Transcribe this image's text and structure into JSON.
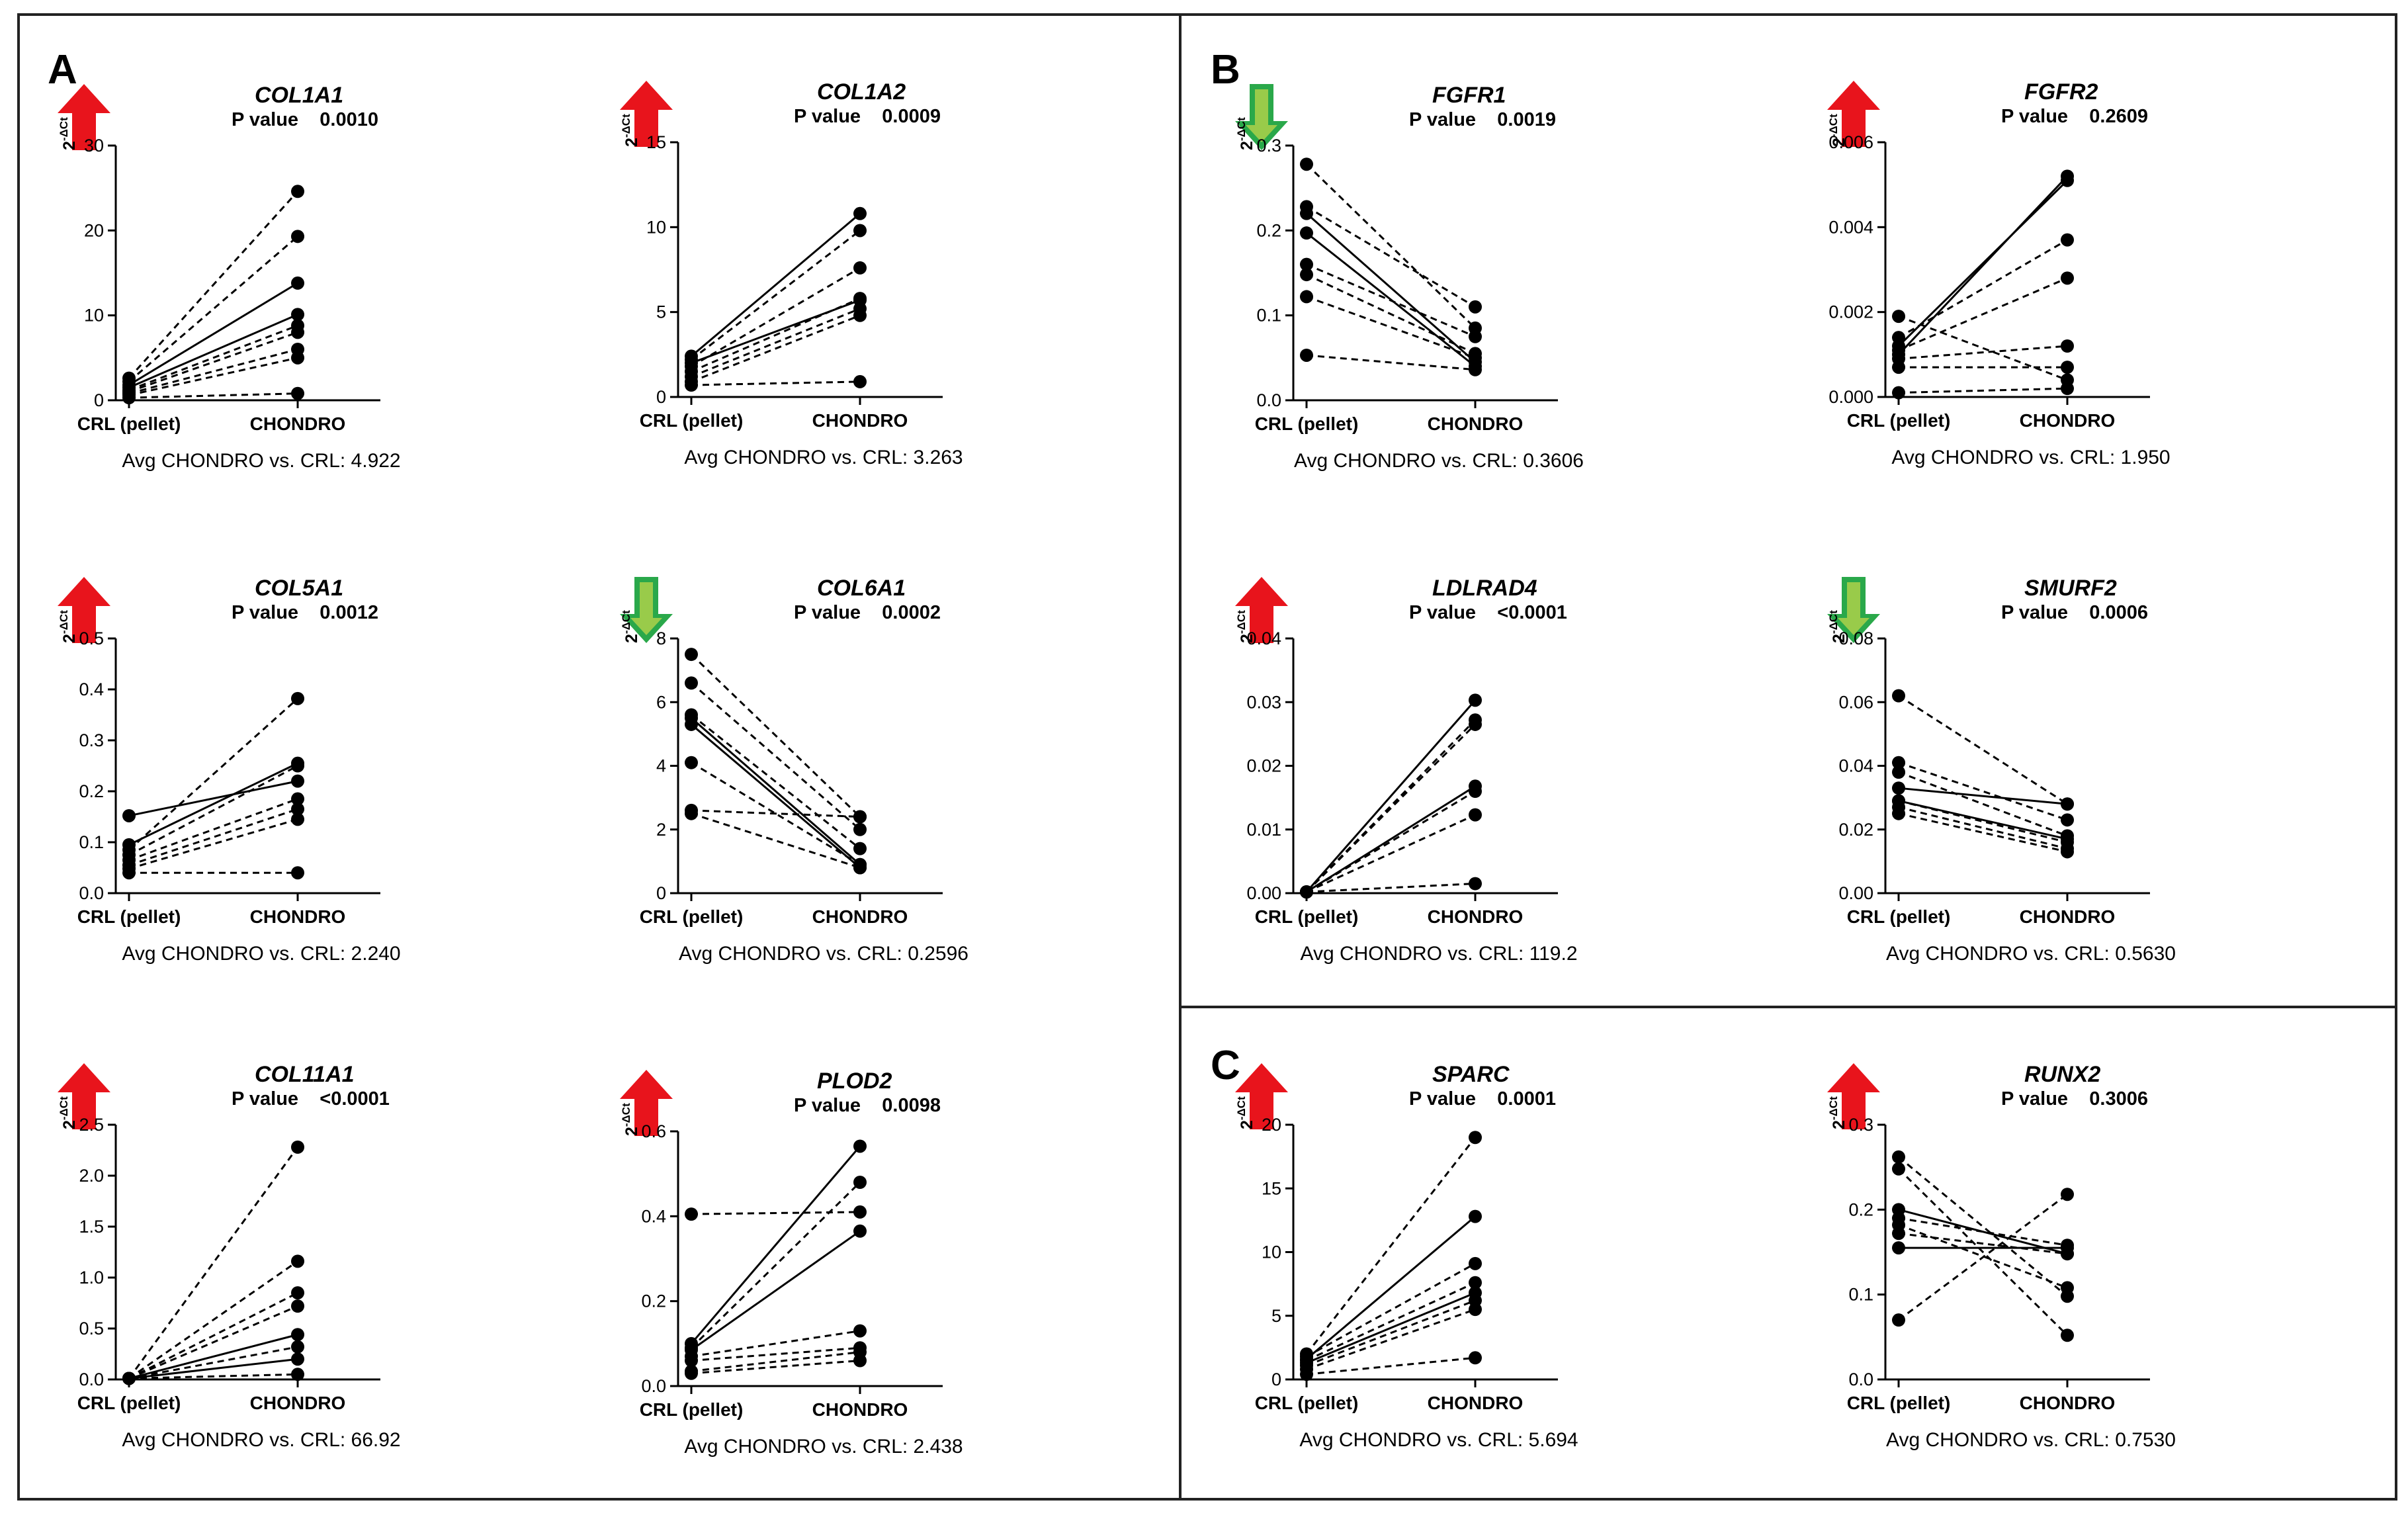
{
  "sections": [
    "A",
    "B",
    "C"
  ],
  "colors": {
    "up": "#e8141c",
    "down": "#2aa84a",
    "line": "#000000"
  },
  "y_label": "2-ΔCt",
  "chart_data": [
    {
      "type": "line",
      "section": "A",
      "gene": "COL1A1",
      "direction": "up",
      "p_label": "P value",
      "p_value": "0.0010",
      "avg_text": "Avg CHONDRO vs. CRL: 4.922",
      "ylabel": "2-ΔCt",
      "categories": [
        "CRL (pellet)",
        "CHONDRO"
      ],
      "ylim": [
        0,
        30
      ],
      "yticks": [
        "0",
        "10",
        "20",
        "30"
      ],
      "series": [
        {
          "name": "s1",
          "values": [
            1.8,
            13.8
          ],
          "style": "solid"
        },
        {
          "name": "s2",
          "values": [
            1.5,
            10.1
          ],
          "style": "solid"
        },
        {
          "name": "s3",
          "values": [
            2.6,
            24.6
          ],
          "style": "dashed"
        },
        {
          "name": "s4",
          "values": [
            2.2,
            19.3
          ],
          "style": "dashed"
        },
        {
          "name": "s5",
          "values": [
            1.2,
            8.8
          ],
          "style": "dashed"
        },
        {
          "name": "s6",
          "values": [
            1.0,
            8.0
          ],
          "style": "dashed"
        },
        {
          "name": "s7",
          "values": [
            0.8,
            6.0
          ],
          "style": "dashed"
        },
        {
          "name": "s8",
          "values": [
            0.6,
            5.0
          ],
          "style": "dashed"
        },
        {
          "name": "s9",
          "values": [
            0.3,
            0.8
          ],
          "style": "dashed"
        }
      ]
    },
    {
      "type": "line",
      "section": "A",
      "gene": "COL1A2",
      "direction": "up",
      "p_label": "P value",
      "p_value": "0.0009",
      "avg_text": "Avg CHONDRO vs. CRL: 3.263",
      "ylabel": "2-ΔCt",
      "categories": [
        "CRL (pellet)",
        "CHONDRO"
      ],
      "ylim": [
        0,
        15
      ],
      "yticks": [
        "0",
        "5",
        "10",
        "15"
      ],
      "series": [
        {
          "name": "s1",
          "values": [
            2.4,
            10.8
          ],
          "style": "solid"
        },
        {
          "name": "s2",
          "values": [
            2.0,
            5.7
          ],
          "style": "solid"
        },
        {
          "name": "s3",
          "values": [
            2.2,
            9.8
          ],
          "style": "dashed"
        },
        {
          "name": "s4",
          "values": [
            1.8,
            7.6
          ],
          "style": "dashed"
        },
        {
          "name": "s5",
          "values": [
            1.5,
            5.8
          ],
          "style": "dashed"
        },
        {
          "name": "s6",
          "values": [
            1.2,
            5.2
          ],
          "style": "dashed"
        },
        {
          "name": "s7",
          "values": [
            0.9,
            4.8
          ],
          "style": "dashed"
        },
        {
          "name": "s8",
          "values": [
            0.7,
            0.9
          ],
          "style": "dashed"
        }
      ]
    },
    {
      "type": "line",
      "section": "A",
      "gene": "COL5A1",
      "direction": "up",
      "p_label": "P value",
      "p_value": "0.0012",
      "avg_text": "Avg CHONDRO vs. CRL: 2.240",
      "ylabel": "2-ΔCt",
      "categories": [
        "CRL (pellet)",
        "CHONDRO"
      ],
      "ylim": [
        0,
        0.5
      ],
      "yticks": [
        "0.0",
        "0.1",
        "0.2",
        "0.3",
        "0.4",
        "0.5"
      ],
      "series": [
        {
          "name": "s1",
          "values": [
            0.152,
            0.22
          ],
          "style": "solid"
        },
        {
          "name": "s2",
          "values": [
            0.095,
            0.255
          ],
          "style": "solid"
        },
        {
          "name": "s3",
          "values": [
            0.085,
            0.382
          ],
          "style": "dashed"
        },
        {
          "name": "s4",
          "values": [
            0.075,
            0.25
          ],
          "style": "dashed"
        },
        {
          "name": "s5",
          "values": [
            0.065,
            0.185
          ],
          "style": "dashed"
        },
        {
          "name": "s6",
          "values": [
            0.055,
            0.165
          ],
          "style": "dashed"
        },
        {
          "name": "s7",
          "values": [
            0.048,
            0.145
          ],
          "style": "dashed"
        },
        {
          "name": "s8",
          "values": [
            0.04,
            0.04
          ],
          "style": "dashed"
        }
      ]
    },
    {
      "type": "line",
      "section": "A",
      "gene": "COL6A1",
      "direction": "down",
      "p_label": "P value",
      "p_value": "0.0002",
      "avg_text": "Avg CHONDRO vs. CRL: 0.2596",
      "ylabel": "2-ΔCt",
      "categories": [
        "CRL (pellet)",
        "CHONDRO"
      ],
      "ylim": [
        0,
        8
      ],
      "yticks": [
        "0",
        "2",
        "4",
        "6",
        "8"
      ],
      "series": [
        {
          "name": "s1",
          "values": [
            5.5,
            0.9
          ],
          "style": "solid"
        },
        {
          "name": "s2",
          "values": [
            5.3,
            0.8
          ],
          "style": "solid"
        },
        {
          "name": "s3",
          "values": [
            7.5,
            2.4
          ],
          "style": "dashed"
        },
        {
          "name": "s4",
          "values": [
            6.6,
            2.0
          ],
          "style": "dashed"
        },
        {
          "name": "s5",
          "values": [
            5.6,
            1.4
          ],
          "style": "dashed"
        },
        {
          "name": "s6",
          "values": [
            4.1,
            0.9
          ],
          "style": "dashed"
        },
        {
          "name": "s7",
          "values": [
            2.6,
            2.4
          ],
          "style": "dashed"
        },
        {
          "name": "s8",
          "values": [
            2.5,
            0.8
          ],
          "style": "dashed"
        }
      ]
    },
    {
      "type": "line",
      "section": "A",
      "gene": "COL11A1",
      "direction": "up",
      "p_label": "P value",
      "p_value": "<0.0001",
      "avg_text": "Avg CHONDRO vs. CRL: 66.92",
      "ylabel": "2-ΔCt",
      "categories": [
        "CRL (pellet)",
        "CHONDRO"
      ],
      "ylim": [
        0,
        2.5
      ],
      "yticks": [
        "0.0",
        "0.5",
        "1.0",
        "1.5",
        "2.0",
        "2.5"
      ],
      "series": [
        {
          "name": "s1",
          "values": [
            0.01,
            0.44
          ],
          "style": "solid"
        },
        {
          "name": "s2",
          "values": [
            0.01,
            0.2
          ],
          "style": "solid"
        },
        {
          "name": "s3",
          "values": [
            0.01,
            2.28
          ],
          "style": "dashed"
        },
        {
          "name": "s4",
          "values": [
            0.01,
            1.16
          ],
          "style": "dashed"
        },
        {
          "name": "s5",
          "values": [
            0.01,
            0.85
          ],
          "style": "dashed"
        },
        {
          "name": "s6",
          "values": [
            0.01,
            0.72
          ],
          "style": "dashed"
        },
        {
          "name": "s7",
          "values": [
            0.01,
            0.32
          ],
          "style": "dashed"
        },
        {
          "name": "s8",
          "values": [
            0.01,
            0.05
          ],
          "style": "dashed"
        }
      ]
    },
    {
      "type": "line",
      "section": "A",
      "gene": "PLOD2",
      "direction": "up",
      "p_label": "P value",
      "p_value": "0.0098",
      "avg_text": "Avg CHONDRO vs. CRL: 2.438",
      "ylabel": "2-ΔCt",
      "categories": [
        "CRL (pellet)",
        "CHONDRO"
      ],
      "ylim": [
        0,
        0.6
      ],
      "yticks": [
        "0.0",
        "0.2",
        "0.4",
        "0.6"
      ],
      "series": [
        {
          "name": "s1",
          "values": [
            0.1,
            0.565
          ],
          "style": "solid"
        },
        {
          "name": "s2",
          "values": [
            0.085,
            0.365
          ],
          "style": "solid"
        },
        {
          "name": "s3",
          "values": [
            0.405,
            0.41
          ],
          "style": "dashed"
        },
        {
          "name": "s4",
          "values": [
            0.09,
            0.48
          ],
          "style": "dashed"
        },
        {
          "name": "s5",
          "values": [
            0.07,
            0.13
          ],
          "style": "dashed"
        },
        {
          "name": "s6",
          "values": [
            0.06,
            0.09
          ],
          "style": "dashed"
        },
        {
          "name": "s7",
          "values": [
            0.035,
            0.08
          ],
          "style": "dashed"
        },
        {
          "name": "s8",
          "values": [
            0.03,
            0.06
          ],
          "style": "dashed"
        }
      ]
    },
    {
      "type": "line",
      "section": "B",
      "gene": "FGFR1",
      "direction": "down",
      "p_label": "P value",
      "p_value": "0.0019",
      "avg_text": "Avg CHONDRO vs. CRL: 0.3606",
      "ylabel": "2-ΔCt",
      "categories": [
        "CRL (pellet)",
        "CHONDRO"
      ],
      "ylim": [
        0,
        0.3
      ],
      "yticks": [
        "0.0",
        "0.1",
        "0.2",
        "0.3"
      ],
      "series": [
        {
          "name": "s1",
          "values": [
            0.22,
            0.045
          ],
          "style": "solid"
        },
        {
          "name": "s2",
          "values": [
            0.197,
            0.04
          ],
          "style": "solid"
        },
        {
          "name": "s3",
          "values": [
            0.278,
            0.085
          ],
          "style": "dashed"
        },
        {
          "name": "s4",
          "values": [
            0.228,
            0.11
          ],
          "style": "dashed"
        },
        {
          "name": "s5",
          "values": [
            0.16,
            0.075
          ],
          "style": "dashed"
        },
        {
          "name": "s6",
          "values": [
            0.148,
            0.055
          ],
          "style": "dashed"
        },
        {
          "name": "s7",
          "values": [
            0.122,
            0.05
          ],
          "style": "dashed"
        },
        {
          "name": "s8",
          "values": [
            0.053,
            0.036
          ],
          "style": "dashed"
        }
      ]
    },
    {
      "type": "line",
      "section": "B",
      "gene": "FGFR2",
      "direction": "up",
      "p_label": "P value",
      "p_value": "0.2609",
      "avg_text": "Avg CHONDRO vs. CRL: 1.950",
      "ylabel": "2-ΔCt",
      "categories": [
        "CRL (pellet)",
        "CHONDRO"
      ],
      "ylim": [
        0,
        0.006
      ],
      "yticks": [
        "0.000",
        "0.002",
        "0.004",
        "0.006"
      ],
      "series": [
        {
          "name": "s1",
          "values": [
            0.0012,
            0.0051
          ],
          "style": "solid"
        },
        {
          "name": "s2",
          "values": [
            0.001,
            0.0052
          ],
          "style": "solid"
        },
        {
          "name": "s3",
          "values": [
            0.0019,
            0.0004
          ],
          "style": "dashed"
        },
        {
          "name": "s4",
          "values": [
            0.0014,
            0.0037
          ],
          "style": "dashed"
        },
        {
          "name": "s5",
          "values": [
            0.0011,
            0.0028
          ],
          "style": "dashed"
        },
        {
          "name": "s6",
          "values": [
            0.0009,
            0.0012
          ],
          "style": "dashed"
        },
        {
          "name": "s7",
          "values": [
            0.0007,
            0.0007
          ],
          "style": "dashed"
        },
        {
          "name": "s8",
          "values": [
            0.0001,
            0.0002
          ],
          "style": "dashed"
        }
      ]
    },
    {
      "type": "line",
      "section": "B",
      "gene": "LDLRAD4",
      "direction": "up",
      "p_label": "P value",
      "p_value": "<0.0001",
      "avg_text": "Avg CHONDRO vs. CRL: 119.2",
      "ylabel": "2-ΔCt",
      "categories": [
        "CRL (pellet)",
        "CHONDRO"
      ],
      "ylim": [
        0,
        0.04
      ],
      "yticks": [
        "0.00",
        "0.01",
        "0.02",
        "0.03",
        "0.04"
      ],
      "series": [
        {
          "name": "s1",
          "values": [
            0.0002,
            0.0303
          ],
          "style": "solid"
        },
        {
          "name": "s2",
          "values": [
            0.0002,
            0.0168
          ],
          "style": "solid"
        },
        {
          "name": "s3",
          "values": [
            0.0002,
            0.0272
          ],
          "style": "dashed"
        },
        {
          "name": "s4",
          "values": [
            0.0002,
            0.0265
          ],
          "style": "dashed"
        },
        {
          "name": "s5",
          "values": [
            0.0002,
            0.016
          ],
          "style": "dashed"
        },
        {
          "name": "s6",
          "values": [
            0.0002,
            0.0123
          ],
          "style": "dashed"
        },
        {
          "name": "s7",
          "values": [
            0.0002,
            0.0015
          ],
          "style": "dashed"
        }
      ]
    },
    {
      "type": "line",
      "section": "B",
      "gene": "SMURF2",
      "direction": "down",
      "p_label": "P value",
      "p_value": "0.0006",
      "avg_text": "Avg CHONDRO vs. CRL: 0.5630",
      "ylabel": "2-ΔCt",
      "categories": [
        "CRL (pellet)",
        "CHONDRO"
      ],
      "ylim": [
        0,
        0.08
      ],
      "yticks": [
        "0.00",
        "0.02",
        "0.04",
        "0.06",
        "0.08"
      ],
      "series": [
        {
          "name": "s1",
          "values": [
            0.033,
            0.028
          ],
          "style": "solid"
        },
        {
          "name": "s2",
          "values": [
            0.029,
            0.017
          ],
          "style": "solid"
        },
        {
          "name": "s3",
          "values": [
            0.062,
            0.028
          ],
          "style": "dashed"
        },
        {
          "name": "s4",
          "values": [
            0.041,
            0.023
          ],
          "style": "dashed"
        },
        {
          "name": "s5",
          "values": [
            0.038,
            0.018
          ],
          "style": "dashed"
        },
        {
          "name": "s6",
          "values": [
            0.029,
            0.016
          ],
          "style": "dashed"
        },
        {
          "name": "s7",
          "values": [
            0.027,
            0.014
          ],
          "style": "dashed"
        },
        {
          "name": "s8",
          "values": [
            0.025,
            0.013
          ],
          "style": "dashed"
        }
      ]
    },
    {
      "type": "line",
      "section": "C",
      "gene": "SPARC",
      "direction": "up",
      "p_label": "P value",
      "p_value": "0.0001",
      "avg_text": "Avg CHONDRO vs. CRL: 5.694",
      "ylabel": "2-ΔCt",
      "categories": [
        "CRL (pellet)",
        "CHONDRO"
      ],
      "ylim": [
        0,
        20
      ],
      "yticks": [
        "0",
        "5",
        "10",
        "15",
        "20"
      ],
      "series": [
        {
          "name": "s1",
          "values": [
            1.6,
            12.8
          ],
          "style": "solid"
        },
        {
          "name": "s2",
          "values": [
            1.3,
            6.8
          ],
          "style": "solid"
        },
        {
          "name": "s3",
          "values": [
            2.0,
            19.0
          ],
          "style": "dashed"
        },
        {
          "name": "s4",
          "values": [
            1.8,
            9.1
          ],
          "style": "dashed"
        },
        {
          "name": "s5",
          "values": [
            1.5,
            7.6
          ],
          "style": "dashed"
        },
        {
          "name": "s6",
          "values": [
            1.1,
            6.2
          ],
          "style": "dashed"
        },
        {
          "name": "s7",
          "values": [
            0.8,
            5.5
          ],
          "style": "dashed"
        },
        {
          "name": "s8",
          "values": [
            0.4,
            1.7
          ],
          "style": "dashed"
        }
      ]
    },
    {
      "type": "line",
      "section": "C",
      "gene": "RUNX2",
      "direction": "up",
      "p_label": "P value",
      "p_value": "0.3006",
      "avg_text": "Avg CHONDRO vs. CRL: 0.7530",
      "ylabel": "2-ΔCt",
      "categories": [
        "CRL (pellet)",
        "CHONDRO"
      ],
      "ylim": [
        0,
        0.3
      ],
      "yticks": [
        "0.0",
        "0.1",
        "0.2",
        "0.3"
      ],
      "series": [
        {
          "name": "s1",
          "values": [
            0.2,
            0.148
          ],
          "style": "solid"
        },
        {
          "name": "s2",
          "values": [
            0.155,
            0.155
          ],
          "style": "solid"
        },
        {
          "name": "s3",
          "values": [
            0.262,
            0.098
          ],
          "style": "dashed"
        },
        {
          "name": "s4",
          "values": [
            0.248,
            0.052
          ],
          "style": "dashed"
        },
        {
          "name": "s5",
          "values": [
            0.19,
            0.158
          ],
          "style": "dashed"
        },
        {
          "name": "s6",
          "values": [
            0.182,
            0.108
          ],
          "style": "dashed"
        },
        {
          "name": "s7",
          "values": [
            0.172,
            0.148
          ],
          "style": "dashed"
        },
        {
          "name": "s8",
          "values": [
            0.07,
            0.218
          ],
          "style": "dashed"
        }
      ]
    }
  ]
}
